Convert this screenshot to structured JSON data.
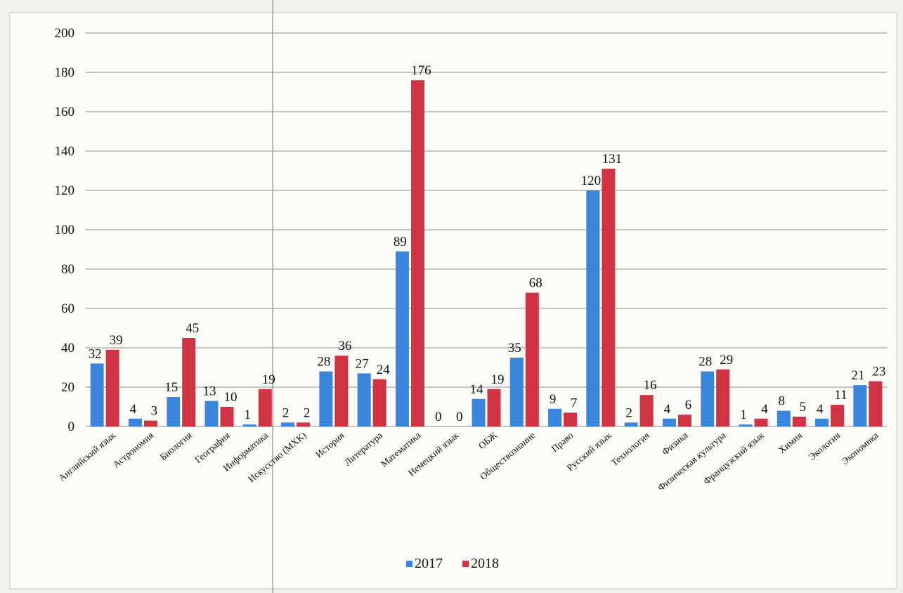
{
  "chart_data": {
    "type": "bar",
    "categories": [
      "Английский язык",
      "Астрономия",
      "Биология",
      "География",
      "Информатика",
      "Искусство (МХК)",
      "История",
      "Литература",
      "Математика",
      "Немецкий язык",
      "ОБЖ",
      "Обществознание",
      "Право",
      "Русский язык",
      "Технология",
      "Физика",
      "Физическая культура",
      "Французский язык",
      "Химия",
      "Экология",
      "Экономика"
    ],
    "series": [
      {
        "name": "2017",
        "color": "#3a86dd",
        "values": [
          32,
          4,
          15,
          13,
          1,
          2,
          28,
          27,
          89,
          0,
          14,
          35,
          9,
          120,
          2,
          4,
          28,
          1,
          8,
          4,
          21
        ]
      },
      {
        "name": "2018",
        "color": "#d03444",
        "values": [
          39,
          3,
          45,
          10,
          19,
          2,
          36,
          24,
          176,
          0,
          19,
          68,
          7,
          131,
          16,
          6,
          29,
          4,
          5,
          11,
          23
        ]
      }
    ],
    "ylim": [
      0,
      200
    ],
    "yticks": [
      "0",
      "20",
      "40",
      "60",
      "80",
      "100",
      "120",
      "140",
      "160",
      "180",
      "200"
    ],
    "grid": true,
    "legend_position": "bottom",
    "title": "",
    "xlabel": "",
    "ylabel": ""
  }
}
